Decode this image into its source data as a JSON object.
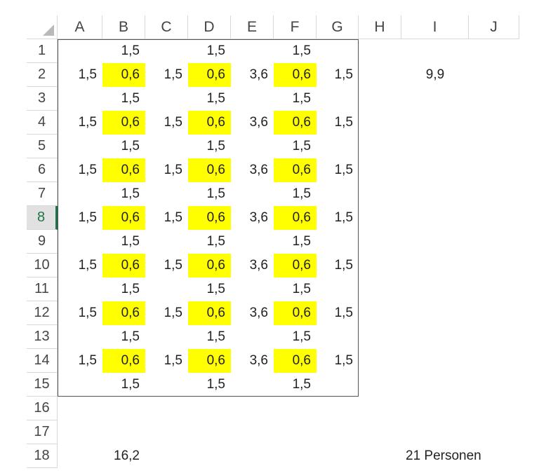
{
  "columns": [
    "A",
    "B",
    "C",
    "D",
    "E",
    "F",
    "G",
    "H",
    "I",
    "J"
  ],
  "rows": [
    "1",
    "2",
    "3",
    "4",
    "5",
    "6",
    "7",
    "8",
    "9",
    "10",
    "11",
    "12",
    "13",
    "14",
    "15",
    "16",
    "17",
    "18"
  ],
  "selected_row": "8",
  "cells": {
    "r1": {
      "B": "1,5",
      "D": "1,5",
      "F": "1,5"
    },
    "r2": {
      "A": "1,5",
      "B": "0,6",
      "C": "1,5",
      "D": "0,6",
      "E": "3,6",
      "F": "0,6",
      "G": "1,5",
      "I": "9,9"
    },
    "r3": {
      "B": "1,5",
      "D": "1,5",
      "F": "1,5"
    },
    "r4": {
      "A": "1,5",
      "B": "0,6",
      "C": "1,5",
      "D": "0,6",
      "E": "3,6",
      "F": "0,6",
      "G": "1,5"
    },
    "r5": {
      "B": "1,5",
      "D": "1,5",
      "F": "1,5"
    },
    "r6": {
      "A": "1,5",
      "B": "0,6",
      "C": "1,5",
      "D": "0,6",
      "E": "3,6",
      "F": "0,6",
      "G": "1,5"
    },
    "r7": {
      "B": "1,5",
      "D": "1,5",
      "F": "1,5"
    },
    "r8": {
      "A": "1,5",
      "B": "0,6",
      "C": "1,5",
      "D": "0,6",
      "E": "3,6",
      "F": "0,6",
      "G": "1,5"
    },
    "r9": {
      "B": "1,5",
      "D": "1,5",
      "F": "1,5"
    },
    "r10": {
      "A": "1,5",
      "B": "0,6",
      "C": "1,5",
      "D": "0,6",
      "E": "3,6",
      "F": "0,6",
      "G": "1,5"
    },
    "r11": {
      "B": "1,5",
      "D": "1,5",
      "F": "1,5"
    },
    "r12": {
      "A": "1,5",
      "B": "0,6",
      "C": "1,5",
      "D": "0,6",
      "E": "3,6",
      "F": "0,6",
      "G": "1,5"
    },
    "r13": {
      "B": "1,5",
      "D": "1,5",
      "F": "1,5"
    },
    "r14": {
      "A": "1,5",
      "B": "0,6",
      "C": "1,5",
      "D": "0,6",
      "E": "3,6",
      "F": "0,6",
      "G": "1,5"
    },
    "r15": {
      "B": "1,5",
      "D": "1,5",
      "F": "1,5"
    },
    "r18": {
      "B": "16,2",
      "I": "21 Personen"
    }
  },
  "highlight_color": "#ffff00",
  "selection_color": "#217346"
}
